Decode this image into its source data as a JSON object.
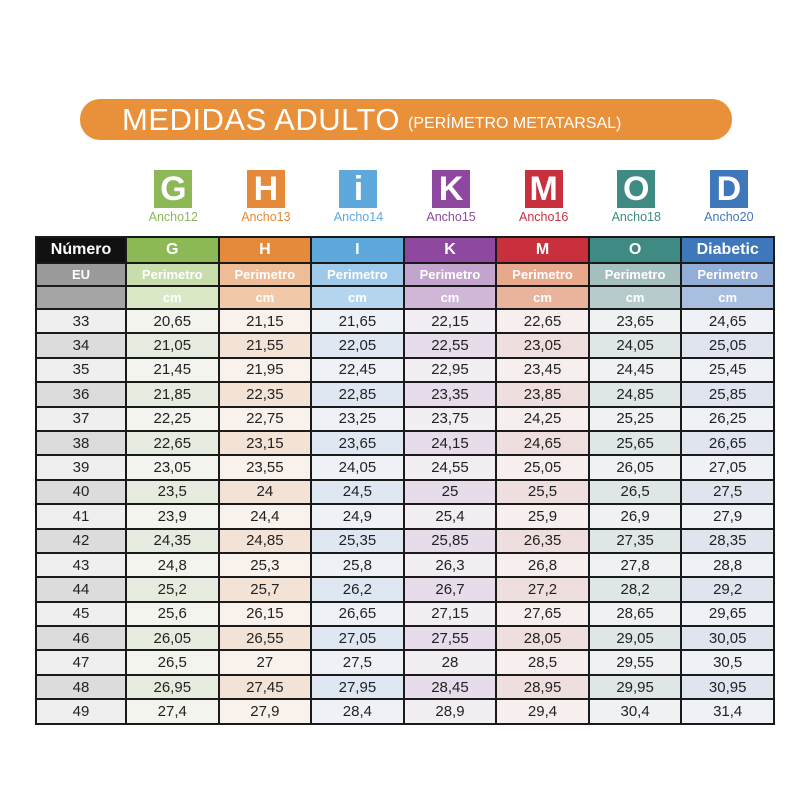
{
  "title": {
    "main": "MEDIDAS ADULTO",
    "sub": "(PERÍMETRO METATARSAL)"
  },
  "columns": [
    {
      "letter": "G",
      "width_label": "Ancho12",
      "header": "G",
      "color": "#8cb955",
      "light1": "#f3f4ee",
      "light2": "#e6ebdf",
      "sub": "#c9dcac",
      "cm": "#dbe8c6"
    },
    {
      "letter": "H",
      "width_label": "Ancho13",
      "header": "H",
      "color": "#e5893a",
      "light1": "#f8f1ec",
      "light2": "#f3e2d6",
      "sub": "#eebd97",
      "cm": "#f1c9a8"
    },
    {
      "letter": "i",
      "width_label": "Ancho14",
      "header": "I",
      "color": "#5fa8dc",
      "light1": "#eef2f7",
      "light2": "#dfe8f2",
      "sub": "#9ec9ea",
      "cm": "#b6d6ef"
    },
    {
      "letter": "K",
      "width_label": "Ancho15",
      "header": "K",
      "color": "#8e48a0",
      "light1": "#f2eef4",
      "light2": "#e6dcea",
      "sub": "#c3a4cc",
      "cm": "#d0b6d7"
    },
    {
      "letter": "M",
      "width_label": "Ancho16",
      "header": "M",
      "color": "#c8303e",
      "light1": "#f6efee",
      "light2": "#efdede",
      "sub": "#e8a88c",
      "cm": "#eab49c"
    },
    {
      "letter": "O",
      "width_label": "Ancho18",
      "header": "O",
      "color": "#3f8a82",
      "light1": "#eef2f2",
      "light2": "#dee6e6",
      "sub": "#a5bfbf",
      "cm": "#b7cbcc"
    },
    {
      "letter": "D",
      "width_label": "Ancho20",
      "header": "Diabetic",
      "color": "#3f77bb",
      "light1": "#eef1f6",
      "light2": "#dfe4ee",
      "sub": "#93aed6",
      "cm": "#a9bfe0"
    }
  ],
  "table": {
    "number_header": "Número",
    "eu_label": "EU",
    "perimeter_label": "Perimetro",
    "unit_label": "cm",
    "rows": [
      [
        "33",
        "20,65",
        "21,15",
        "21,65",
        "22,15",
        "22,65",
        "23,65",
        "24,65"
      ],
      [
        "34",
        "21,05",
        "21,55",
        "22,05",
        "22,55",
        "23,05",
        "24,05",
        "25,05"
      ],
      [
        "35",
        "21,45",
        "21,95",
        "22,45",
        "22,95",
        "23,45",
        "24,45",
        "25,45"
      ],
      [
        "36",
        "21,85",
        "22,35",
        "22,85",
        "23,35",
        "23,85",
        "24,85",
        "25,85"
      ],
      [
        "37",
        "22,25",
        "22,75",
        "23,25",
        "23,75",
        "24,25",
        "25,25",
        "26,25"
      ],
      [
        "38",
        "22,65",
        "23,15",
        "23,65",
        "24,15",
        "24,65",
        "25,65",
        "26,65"
      ],
      [
        "39",
        "23,05",
        "23,55",
        "24,05",
        "24,55",
        "25,05",
        "26,05",
        "27,05"
      ],
      [
        "40",
        "23,5",
        "24",
        "24,5",
        "25",
        "25,5",
        "26,5",
        "27,5"
      ],
      [
        "41",
        "23,9",
        "24,4",
        "24,9",
        "25,4",
        "25,9",
        "26,9",
        "27,9"
      ],
      [
        "42",
        "24,35",
        "24,85",
        "25,35",
        "25,85",
        "26,35",
        "27,35",
        "28,35"
      ],
      [
        "43",
        "24,8",
        "25,3",
        "25,8",
        "26,3",
        "26,8",
        "27,8",
        "28,8"
      ],
      [
        "44",
        "25,2",
        "25,7",
        "26,2",
        "26,7",
        "27,2",
        "28,2",
        "29,2"
      ],
      [
        "45",
        "25,6",
        "26,15",
        "26,65",
        "27,15",
        "27,65",
        "28,65",
        "29,65"
      ],
      [
        "46",
        "26,05",
        "26,55",
        "27,05",
        "27,55",
        "28,05",
        "29,05",
        "30,05"
      ],
      [
        "47",
        "26,5",
        "27",
        "27,5",
        "28",
        "28,5",
        "29,55",
        "30,5"
      ],
      [
        "48",
        "26,95",
        "27,45",
        "27,95",
        "28,45",
        "28,95",
        "29,95",
        "30,95"
      ],
      [
        "49",
        "27,4",
        "27,9",
        "28,4",
        "28,9",
        "29,4",
        "30,4",
        "31,4"
      ]
    ]
  }
}
